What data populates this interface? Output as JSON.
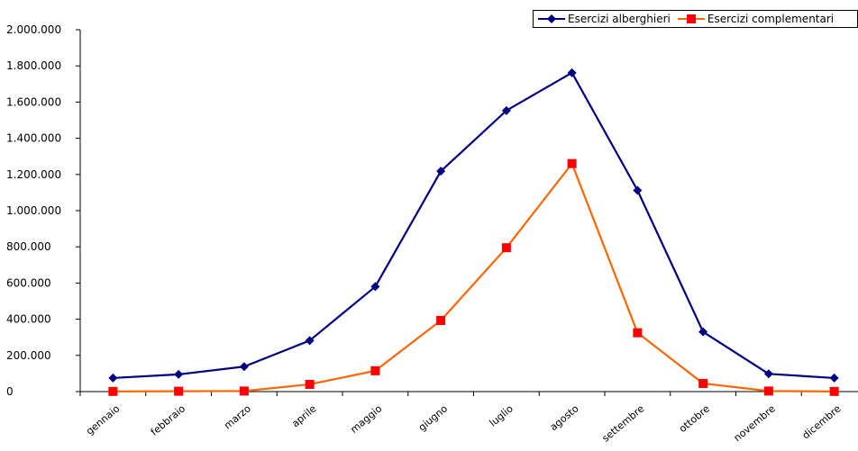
{
  "chart_data": {
    "type": "line",
    "categories": [
      "gennaio",
      "febbraio",
      "marzo",
      "aprile",
      "maggio",
      "giugno",
      "luglio",
      "agosto",
      "settembre",
      "ottobre",
      "novembre",
      "dicembre"
    ],
    "series": [
      {
        "name": "Esercizi alberghieri",
        "color": "#000080",
        "marker": "diamond",
        "values": [
          75000,
          95000,
          138000,
          282000,
          580000,
          1218000,
          1553000,
          1762000,
          1112000,
          330000,
          98000,
          75000
        ]
      },
      {
        "name": "Esercizi complementari",
        "color": "#ff6600",
        "marker_color": "#ff0000",
        "marker": "square",
        "values": [
          1000,
          2000,
          3000,
          40000,
          115000,
          393000,
          795000,
          1260000,
          325000,
          45000,
          3000,
          1000
        ]
      }
    ],
    "yticks": [
      "0",
      "200.000",
      "400.000",
      "600.000",
      "800.000",
      "1.000.000",
      "1.200.000",
      "1.400.000",
      "1.600.000",
      "1.800.000",
      "2.000.000"
    ],
    "ylim": [
      0,
      2000000
    ],
    "grid": false,
    "legend_position": "top-right"
  }
}
